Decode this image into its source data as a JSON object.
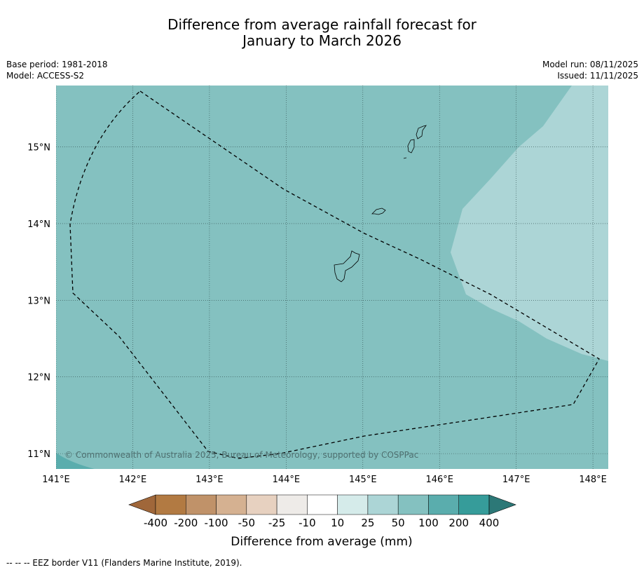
{
  "title": {
    "line1": "Difference from average rainfall forecast for",
    "line2": "January to March 2026"
  },
  "meta_left": {
    "base_period": "Base period: 1981-2018",
    "model": "Model: ACCESS-S2"
  },
  "meta_right": {
    "model_run": "Model run: 08/11/2025",
    "issued": "Issued: 11/11/2025"
  },
  "map": {
    "lon_range": [
      141.0,
      148.2
    ],
    "lat_range": [
      10.8,
      15.8
    ],
    "lon_ticks": [
      {
        "value": 141,
        "label": "141°E"
      },
      {
        "value": 142,
        "label": "142°E"
      },
      {
        "value": 143,
        "label": "143°E"
      },
      {
        "value": 144,
        "label": "144°E"
      },
      {
        "value": 145,
        "label": "145°E"
      },
      {
        "value": 146,
        "label": "146°E"
      },
      {
        "value": 147,
        "label": "147°E"
      },
      {
        "value": 148,
        "label": "148°E"
      }
    ],
    "lat_ticks": [
      {
        "value": 11,
        "label": "11°N"
      },
      {
        "value": 12,
        "label": "12°N"
      },
      {
        "value": 13,
        "label": "13°N"
      },
      {
        "value": 14,
        "label": "14°N"
      },
      {
        "value": 15,
        "label": "15°N"
      }
    ],
    "background_category": "50 to 100 mm",
    "background_color": "#84c1c0",
    "grid": true,
    "copyright": "© Commonwealth of Australia 2025, Bureau of Meteorology, supported by COSPPac"
  },
  "colorbar": {
    "title": "Difference from average (mm)",
    "tick_labels": [
      "-400",
      "-200",
      "-100",
      "-50",
      "-25",
      "-10",
      "10",
      "25",
      "50",
      "100",
      "200",
      "400"
    ],
    "colors": [
      "#a0673a",
      "#b27a42",
      "#c09269",
      "#d5b191",
      "#e7d1c0",
      "#eeebe8",
      "#ffffff",
      "#d5ebea",
      "#acd5d6",
      "#84c1c0",
      "#5aadad",
      "#369c9a",
      "#2c7877"
    ]
  },
  "footer": {
    "legend_text": "--  --  -- EEZ border V11 (Flanders Marine Institute, 2019)."
  }
}
